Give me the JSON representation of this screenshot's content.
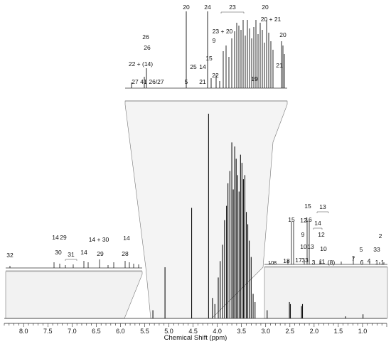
{
  "chart_data": {
    "type": "line",
    "title": "",
    "xlabel": "Chemical Shift (ppm)",
    "ylabel": "",
    "xlim": [
      8.4,
      0.5
    ],
    "x_axis_reversed": true,
    "x_ticks": [
      "8.0",
      "7.5",
      "7.0",
      "6.5",
      "6.0",
      "5.5",
      "5.0",
      "4.5",
      "4.0",
      "3.5",
      "3.0",
      "2.5",
      "2.0",
      "1.5",
      "1.0"
    ],
    "main_spectrum": {
      "name": "",
      "peaks": [
        {
          "x": 5.33,
          "y": 0.04
        },
        {
          "x": 5.08,
          "y": 0.25
        },
        {
          "x": 4.53,
          "y": 0.54
        },
        {
          "x": 4.18,
          "y": 1.0
        },
        {
          "x": 4.1,
          "y": 0.1
        },
        {
          "x": 4.05,
          "y": 0.07
        },
        {
          "x": 3.98,
          "y": 0.2
        },
        {
          "x": 3.94,
          "y": 0.28
        },
        {
          "x": 3.89,
          "y": 0.36
        },
        {
          "x": 3.85,
          "y": 0.48
        },
        {
          "x": 3.81,
          "y": 0.55
        },
        {
          "x": 3.78,
          "y": 0.66
        },
        {
          "x": 3.74,
          "y": 0.72
        },
        {
          "x": 3.7,
          "y": 0.86
        },
        {
          "x": 3.67,
          "y": 0.63
        },
        {
          "x": 3.64,
          "y": 0.84
        },
        {
          "x": 3.61,
          "y": 0.78
        },
        {
          "x": 3.58,
          "y": 0.7
        },
        {
          "x": 3.55,
          "y": 0.62
        },
        {
          "x": 3.52,
          "y": 0.8
        },
        {
          "x": 3.49,
          "y": 0.76
        },
        {
          "x": 3.46,
          "y": 0.68
        },
        {
          "x": 3.43,
          "y": 0.7
        },
        {
          "x": 3.4,
          "y": 0.52
        },
        {
          "x": 3.37,
          "y": 0.46
        },
        {
          "x": 3.34,
          "y": 0.38
        },
        {
          "x": 3.3,
          "y": 0.3
        },
        {
          "x": 3.26,
          "y": 0.12
        },
        {
          "x": 3.22,
          "y": 0.08
        },
        {
          "x": 2.97,
          "y": 0.04
        },
        {
          "x": 2.51,
          "y": 0.08
        },
        {
          "x": 2.49,
          "y": 0.07
        },
        {
          "x": 2.26,
          "y": 0.06
        },
        {
          "x": 2.24,
          "y": 0.07
        },
        {
          "x": 1.35,
          "y": 0.01
        },
        {
          "x": 0.99,
          "y": 0.02
        }
      ]
    },
    "insets": [
      {
        "name": "",
        "labels": [
          "20",
          "24",
          "23",
          "20",
          "26",
          "22 + (14)",
          "25",
          "14",
          "15",
          "23 + 20",
          "9",
          "22",
          "20 + 21",
          "20",
          "21",
          "26",
          "27",
          "41",
          "26/27",
          "5",
          "21",
          "19"
        ]
      },
      {
        "name": "",
        "labels": [
          "32",
          "14",
          "29",
          "30",
          "31",
          "14",
          "14 + 30",
          "29",
          "14",
          "28"
        ]
      },
      {
        "name": "",
        "labels": [
          "15",
          "13",
          "15",
          "12",
          "16",
          "14",
          "9",
          "12",
          "10",
          "13",
          "10",
          "17",
          "33",
          "3",
          "11",
          "(8)",
          "10",
          "8",
          "18",
          "7",
          "5",
          "6",
          "4",
          "1",
          "1",
          "2",
          "33"
        ]
      }
    ]
  }
}
